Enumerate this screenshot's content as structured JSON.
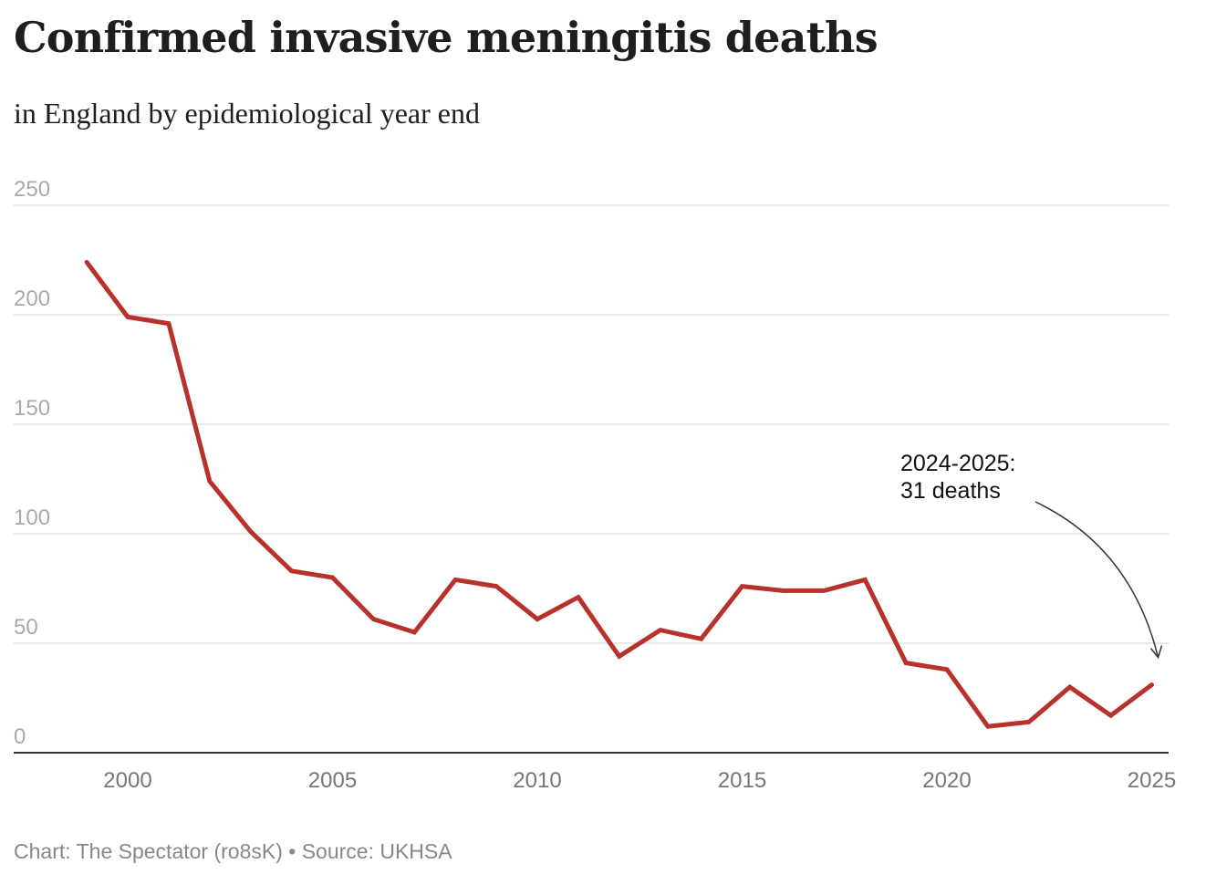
{
  "chart_data": {
    "type": "line",
    "title": "Confirmed invasive meningitis deaths",
    "subtitle": "in England by epidemiological year end",
    "xlabel": "",
    "ylabel": "",
    "x": [
      1999,
      2000,
      2001,
      2002,
      2003,
      2004,
      2005,
      2006,
      2007,
      2008,
      2009,
      2010,
      2011,
      2012,
      2013,
      2014,
      2015,
      2016,
      2017,
      2018,
      2019,
      2020,
      2021,
      2022,
      2023,
      2024,
      2025
    ],
    "series": [
      {
        "name": "Deaths",
        "color": "#b8312a",
        "values": [
          224,
          199,
          196,
          124,
          101,
          83,
          80,
          61,
          55,
          79,
          76,
          61,
          71,
          44,
          56,
          52,
          76,
          74,
          74,
          79,
          41,
          38,
          12,
          14,
          30,
          17,
          31
        ]
      }
    ],
    "xlim": [
      1997.3,
      2025.4
    ],
    "ylim": [
      0,
      250
    ],
    "yticks": [
      0,
      50,
      100,
      150,
      200,
      250
    ],
    "ytick_labels": [
      "0",
      "50",
      "100",
      "150",
      "200",
      "250"
    ],
    "xticks": [
      2000,
      2005,
      2010,
      2015,
      2020,
      2025
    ],
    "xtick_labels": [
      "2000",
      "2005",
      "2010",
      "2015",
      "2020",
      "2025"
    ],
    "grid": true,
    "annotations": [
      {
        "lines": [
          "2024-2025:",
          "31 deaths"
        ],
        "target_x": 2025,
        "target_y": 31
      }
    ],
    "footer": "Chart: The Spectator (ro8sK) • Source: UKHSA"
  }
}
